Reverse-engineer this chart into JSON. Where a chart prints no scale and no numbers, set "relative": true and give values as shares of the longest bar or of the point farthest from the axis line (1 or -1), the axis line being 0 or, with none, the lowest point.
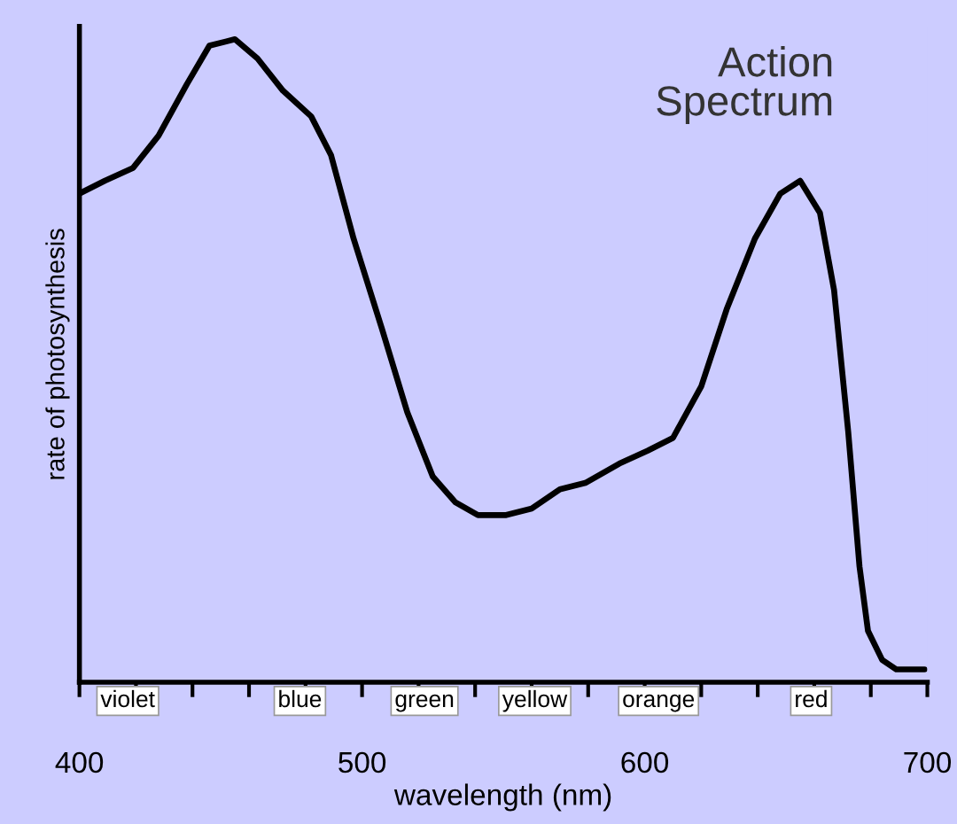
{
  "chart_data": {
    "type": "line",
    "title": "Action\nSpectrum",
    "xlabel": "wavelength (nm)",
    "ylabel": "rate of photosynthesis",
    "relative": true,
    "grid": false,
    "legend": false,
    "marker": "none",
    "line_style": "solid",
    "xlim": [
      400,
      700
    ],
    "xticks": [
      400,
      {
        "value": 420,
        "label": null
      },
      {
        "value": 440,
        "label": null
      },
      {
        "value": 460,
        "label": null
      },
      {
        "value": 480,
        "label": null
      },
      500,
      {
        "value": 520,
        "label": null
      },
      {
        "value": 540,
        "label": null
      },
      {
        "value": 560,
        "label": null
      },
      {
        "value": 580,
        "label": null
      },
      600,
      {
        "value": 620,
        "label": null
      },
      {
        "value": 640,
        "label": null
      },
      {
        "value": 660,
        "label": null
      },
      {
        "value": 680,
        "label": null
      },
      700
    ],
    "annotations": [
      "violet",
      "blue",
      "green",
      "yellow",
      "orange",
      "red"
    ],
    "series": [
      {
        "color": "#000000",
        "x": [
          400,
          409,
          419,
          428,
          438,
          446,
          455,
          463,
          472,
          482,
          489,
          497,
          507,
          516,
          525,
          533,
          541,
          551,
          560,
          570,
          579,
          591,
          601,
          610,
          620,
          629,
          639,
          648,
          655,
          662,
          667,
          672,
          676,
          679,
          684,
          689,
          699
        ],
        "values": [
          0.76,
          0.78,
          0.8,
          0.85,
          0.93,
          0.99,
          1.0,
          0.97,
          0.92,
          0.88,
          0.82,
          0.69,
          0.55,
          0.42,
          0.32,
          0.28,
          0.26,
          0.26,
          0.27,
          0.3,
          0.31,
          0.34,
          0.36,
          0.38,
          0.46,
          0.58,
          0.69,
          0.76,
          0.78,
          0.73,
          0.61,
          0.39,
          0.18,
          0.08,
          0.035,
          0.02,
          0.02
        ]
      }
    ]
  }
}
